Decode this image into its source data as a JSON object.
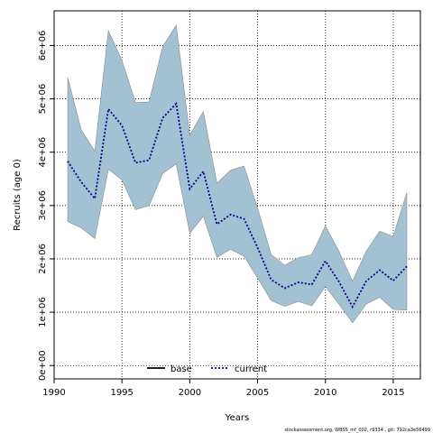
{
  "chart_data": {
    "type": "line",
    "title": "",
    "xlabel": "Years",
    "ylabel": "Recruits (age 0)",
    "xlim": [
      1990,
      2017
    ],
    "ylim": [
      -250000,
      6650000
    ],
    "x_ticks": [
      1990,
      1995,
      2000,
      2005,
      2010,
      2015
    ],
    "x_tick_labels": [
      "1990",
      "1995",
      "2000",
      "2005",
      "2010",
      "2015"
    ],
    "y_ticks": [
      0,
      1000000,
      2000000,
      3000000,
      4000000,
      5000000,
      6000000
    ],
    "y_tick_labels": [
      "0e+00",
      "1e+06",
      "2e+06",
      "3e+06",
      "4e+06",
      "5e+06",
      "6e+06"
    ],
    "grid": true,
    "legend_position": "bottom-center",
    "x": [
      1991,
      1992,
      1993,
      1994,
      1995,
      1996,
      1997,
      1998,
      1999,
      2000,
      2001,
      2002,
      2003,
      2004,
      2005,
      2006,
      2007,
      2008,
      2009,
      2010,
      2011,
      2012,
      2013,
      2014,
      2015,
      2016
    ],
    "band": {
      "lower": [
        2700000,
        2580000,
        2380000,
        3680000,
        3480000,
        2920000,
        3000000,
        3600000,
        3780000,
        2480000,
        2800000,
        2030000,
        2180000,
        2050000,
        1640000,
        1220000,
        1110000,
        1200000,
        1120000,
        1480000,
        1150000,
        800000,
        1150000,
        1280000,
        1050000,
        1040000
      ],
      "upper": [
        5400000,
        4420000,
        4020000,
        6280000,
        5720000,
        4930000,
        4940000,
        5980000,
        6380000,
        4320000,
        4760000,
        3420000,
        3660000,
        3740000,
        2950000,
        2080000,
        1880000,
        2020000,
        2080000,
        2620000,
        2140000,
        1580000,
        2140000,
        2520000,
        2420000,
        3240000
      ],
      "color": "#a2c2d4",
      "edge_color": "#8a8a8a"
    },
    "series": [
      {
        "name": "current",
        "style": "dotted",
        "color": "#00008b",
        "values": [
          3830000,
          3440000,
          3130000,
          4810000,
          4500000,
          3800000,
          3850000,
          4640000,
          4910000,
          3310000,
          3640000,
          2650000,
          2830000,
          2750000,
          2210000,
          1610000,
          1450000,
          1560000,
          1520000,
          1960000,
          1570000,
          1100000,
          1580000,
          1790000,
          1590000,
          1860000
        ]
      }
    ],
    "legend": [
      {
        "label": "base",
        "style": "solid",
        "color": "#000000"
      },
      {
        "label": "current",
        "style": "dotted",
        "color": "#00008b"
      }
    ],
    "footer": "stockassessment.org, WBSS_mf_002, r9334 , git: 792ca3e56499"
  }
}
